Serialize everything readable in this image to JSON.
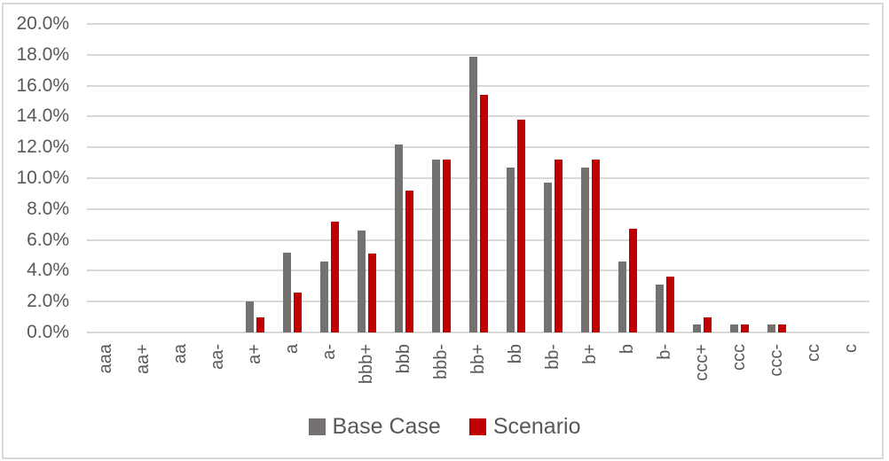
{
  "chart_data": {
    "type": "bar",
    "title": "",
    "categories": [
      "aaa",
      "aa+",
      "aa",
      "aa-",
      "a+",
      "a",
      "a-",
      "bbb+",
      "bbb",
      "bbb-",
      "bb+",
      "bb",
      "bb-",
      "b+",
      "b",
      "b-",
      "ccc+",
      "ccc",
      "ccc-",
      "cc",
      "c"
    ],
    "series": [
      {
        "name": "Base Case",
        "color": "#767171",
        "values": [
          0,
          0,
          0,
          0,
          2.0,
          5.2,
          4.6,
          6.6,
          12.2,
          11.2,
          17.9,
          10.7,
          9.7,
          10.7,
          4.6,
          3.1,
          0.5,
          0.5,
          0.5,
          0,
          0
        ]
      },
      {
        "name": "Scenario",
        "color": "#C00000",
        "values": [
          0,
          0,
          0,
          0,
          1.0,
          2.6,
          7.2,
          5.1,
          9.2,
          11.2,
          15.4,
          13.8,
          11.2,
          11.2,
          6.7,
          3.6,
          1.0,
          0.5,
          0.5,
          0,
          0
        ]
      }
    ],
    "y_axis": {
      "min": 0,
      "max": 20,
      "step": 2,
      "unit": "%",
      "tick_labels": [
        "0.0%",
        "2.0%",
        "4.0%",
        "6.0%",
        "8.0%",
        "10.0%",
        "12.0%",
        "14.0%",
        "16.0%",
        "18.0%",
        "20.0%"
      ]
    },
    "x_axis": {
      "label": "",
      "tick_rotation_degrees": 90
    },
    "legend": {
      "position": "bottom",
      "entries": [
        "Base Case",
        "Scenario"
      ]
    },
    "grid": true
  },
  "styles": {
    "gridline_color": "#D9D9D9",
    "border_color": "#D9D9D9",
    "axis_text_color": "#595959",
    "background": "#FFFFFF"
  }
}
